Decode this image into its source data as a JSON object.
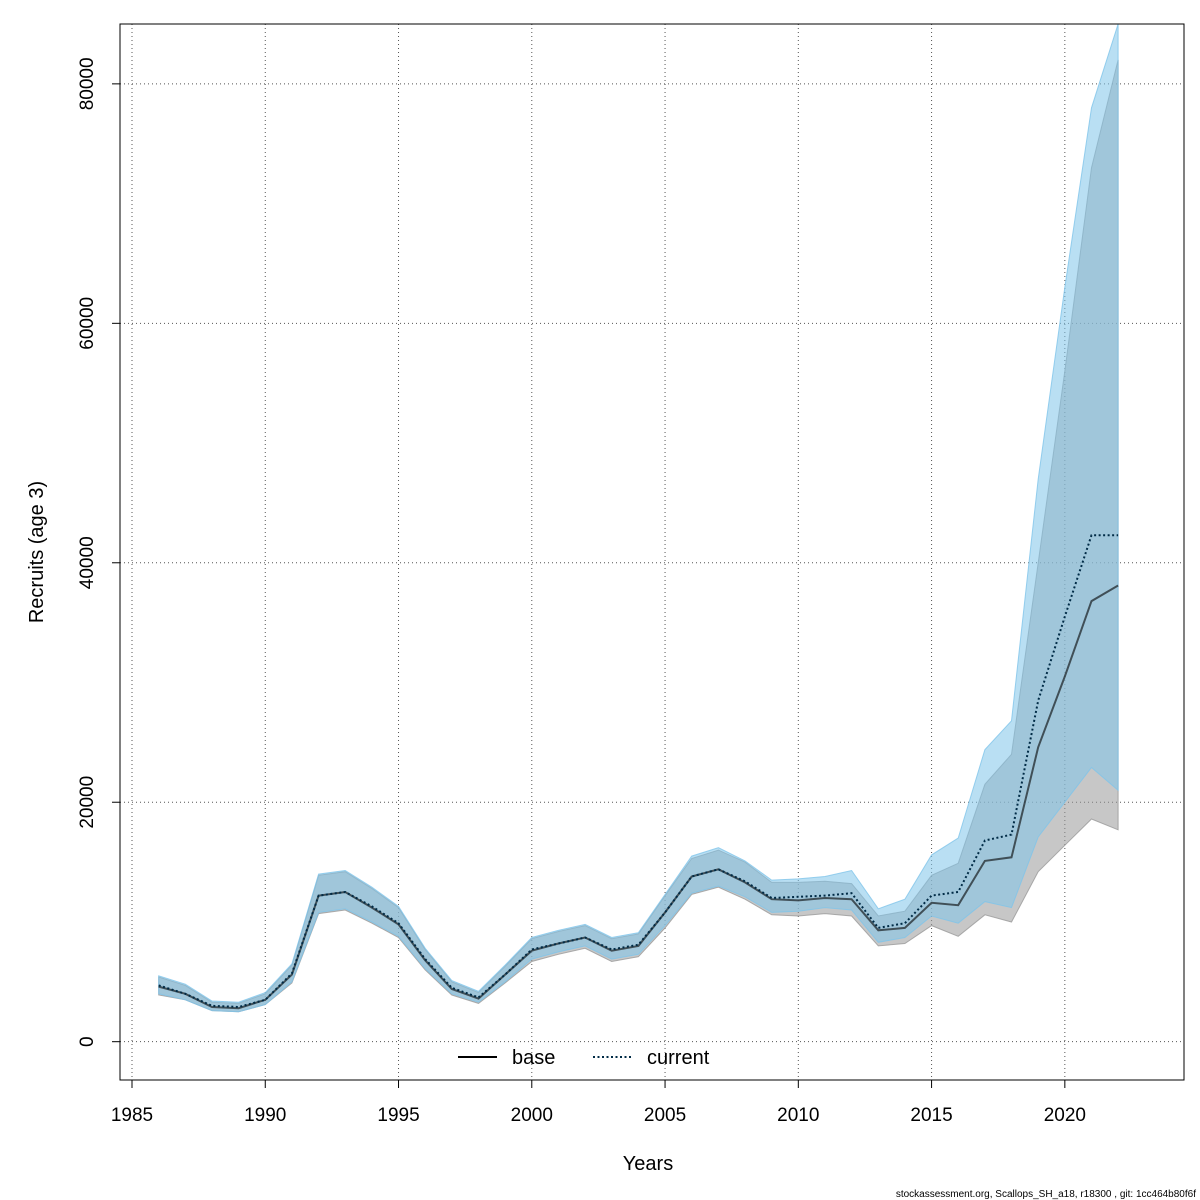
{
  "chart_data": {
    "type": "line",
    "xlabel": "Years",
    "ylabel": "Recruits (age 3)",
    "xlim": [
      1985,
      2023
    ],
    "ylim": [
      -3200,
      85000
    ],
    "x_ticks": [
      1985,
      1990,
      1995,
      2000,
      2005,
      2010,
      2015,
      2020
    ],
    "y_ticks": [
      0,
      20000,
      40000,
      60000,
      80000
    ],
    "grid": true,
    "legend_position": "bottom",
    "years": [
      1986,
      1987,
      1988,
      1989,
      1990,
      1991,
      1992,
      1993,
      1994,
      1995,
      1996,
      1997,
      1998,
      1999,
      2000,
      2001,
      2002,
      2003,
      2004,
      2005,
      2006,
      2007,
      2008,
      2009,
      2010,
      2011,
      2012,
      2013,
      2014,
      2015,
      2016,
      2017,
      2018,
      2019,
      2020,
      2021,
      2022
    ],
    "series": [
      {
        "name": "base",
        "style": "solid",
        "line_color": "#000000",
        "band_color": "#999999",
        "values": [
          4600,
          4000,
          2900,
          2800,
          3500,
          5600,
          12200,
          12500,
          11200,
          9800,
          6800,
          4400,
          3600,
          5600,
          7600,
          8200,
          8700,
          7600,
          8000,
          10800,
          13800,
          14400,
          13300,
          11900,
          11800,
          12000,
          11900,
          9300,
          9500,
          11600,
          11400,
          15100,
          15400,
          24600,
          30500,
          36800,
          38100
        ],
        "upper": [
          5400,
          4700,
          3300,
          3200,
          4000,
          6400,
          13900,
          14200,
          12800,
          11200,
          7700,
          5000,
          4100,
          6300,
          8600,
          9200,
          9700,
          8600,
          9000,
          12200,
          15300,
          16000,
          15000,
          13300,
          13300,
          13400,
          13200,
          10500,
          10900,
          13900,
          14900,
          21500,
          24000,
          40000,
          56000,
          73000,
          82000
        ],
        "lower": [
          3900,
          3500,
          2600,
          2500,
          3100,
          4900,
          10700,
          11000,
          9900,
          8700,
          6000,
          3900,
          3200,
          4900,
          6700,
          7300,
          7800,
          6700,
          7100,
          9500,
          12300,
          12900,
          11900,
          10600,
          10500,
          10700,
          10500,
          8000,
          8200,
          9700,
          8800,
          10600,
          10000,
          14200,
          16400,
          18600,
          17700
        ]
      },
      {
        "name": "current",
        "style": "dotted",
        "line_color": "#002b46",
        "band_color": "#7fc4ea",
        "values": [
          4700,
          4000,
          3000,
          2900,
          3500,
          5700,
          12200,
          12500,
          11300,
          9900,
          6900,
          4500,
          3700,
          5600,
          7700,
          8200,
          8700,
          7700,
          8100,
          10800,
          13800,
          14400,
          13400,
          12000,
          12100,
          12200,
          12400,
          9500,
          9900,
          12200,
          12500,
          16800,
          17300,
          28500,
          35500,
          42300,
          42300
        ],
        "upper": [
          5500,
          4800,
          3400,
          3300,
          4100,
          6500,
          14000,
          14300,
          12900,
          11300,
          7800,
          5100,
          4200,
          6400,
          8700,
          9300,
          9800,
          8700,
          9100,
          12300,
          15500,
          16200,
          15100,
          13500,
          13600,
          13800,
          14300,
          11100,
          11900,
          15600,
          17000,
          24400,
          26800,
          47000,
          63000,
          78000,
          85000
        ],
        "lower": [
          4000,
          3500,
          2600,
          2500,
          3100,
          5000,
          10800,
          11100,
          10000,
          8800,
          6100,
          4000,
          3300,
          5000,
          6900,
          7500,
          8000,
          6900,
          7300,
          9700,
          12400,
          13000,
          12100,
          10800,
          10900,
          11200,
          11000,
          8300,
          8700,
          10500,
          9900,
          11700,
          11200,
          17100,
          20000,
          22900,
          21000
        ]
      }
    ]
  },
  "footer_text": "stockassessment.org, Scallops_SH_a18, r18300 , git: 1cc464b80f6f"
}
